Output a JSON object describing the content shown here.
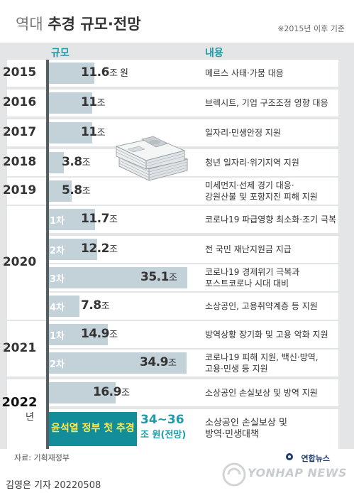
{
  "header": {
    "title_light": "역대",
    "title_bold": "추경 규모·전망",
    "note": "※2015년 이후 기준"
  },
  "columns": {
    "size": "규모",
    "content": "내용"
  },
  "chart_data": {
    "type": "bar",
    "orientation": "horizontal",
    "unit": "조 원",
    "rows": [
      {
        "year": "2015",
        "sub": "",
        "value": 11.6,
        "label_num": "11.6",
        "label_unit": "조 원",
        "desc": [
          "메르스 사태·가뭄 대응"
        ]
      },
      {
        "year": "2016",
        "sub": "",
        "value": 11,
        "label_num": "11",
        "label_unit": "조",
        "desc": [
          "브렉시트, 기업 구조조정 영향 대응"
        ]
      },
      {
        "year": "2017",
        "sub": "",
        "value": 11,
        "label_num": "11",
        "label_unit": "조",
        "desc": [
          "일자리·민생안정 지원"
        ]
      },
      {
        "year": "2018",
        "sub": "",
        "value": 3.8,
        "label_num": "3.8",
        "label_unit": "조",
        "desc": [
          "청년 일자리·위기지역 지원"
        ]
      },
      {
        "year": "2019",
        "sub": "",
        "value": 5.8,
        "label_num": "5.8",
        "label_unit": "조",
        "desc": [
          "미세먼지·선제 경기 대응·",
          "강원산불 및 포항지진 피해 지원"
        ]
      },
      {
        "year": "2020",
        "sub": "1차",
        "value": 11.7,
        "label_num": "11.7",
        "label_unit": "조",
        "desc": [
          "코로나19 파급영향 최소화·조기 극복"
        ]
      },
      {
        "year": "2020",
        "sub": "2차",
        "value": 12.2,
        "label_num": "12.2",
        "label_unit": "조",
        "desc": [
          "전 국민 재난지원금 지급"
        ]
      },
      {
        "year": "2020",
        "sub": "3차",
        "value": 35.1,
        "label_num": "35.1",
        "label_unit": "조",
        "desc": [
          "코로나19 경제위기 극복과",
          "포스트코로나 시대 대비"
        ]
      },
      {
        "year": "2020",
        "sub": "4차",
        "value": 7.8,
        "label_num": "7.8",
        "label_unit": "조",
        "desc": [
          "소상공인, 고용취약계층 등 지원"
        ]
      },
      {
        "year": "2021",
        "sub": "1차",
        "value": 14.9,
        "label_num": "14.9",
        "label_unit": "조",
        "desc": [
          "방역상황 장기화 및 고용 악화 지원"
        ]
      },
      {
        "year": "2021",
        "sub": "2차",
        "value": 34.9,
        "label_num": "34.9",
        "label_unit": "조",
        "desc": [
          "코로나19 피해 지원, 백신·방역,",
          "고용·민생 등 지원"
        ]
      },
      {
        "year": "2022",
        "sub": "",
        "value": 16.9,
        "label_num": "16.9",
        "label_unit": "조",
        "desc": [
          "소상공인 손실보상 및 방역 지원"
        ]
      }
    ],
    "highlight": {
      "year": "2022",
      "sub": "년",
      "label": "윤석열 정부 첫 추경",
      "value_range": [
        34,
        36
      ],
      "value_text": "34~36",
      "value_unit": "조 원(전망)",
      "desc": [
        "소상공인 손실보상 및",
        "방역·민생대책"
      ]
    }
  },
  "source": "자료: 기획재정부",
  "footer": {
    "author": "김영은 기자",
    "date": "20220508"
  },
  "logo": {
    "sub": "연합뉴스",
    "main": "YONHAP NEWS"
  },
  "colors": {
    "accent": "#1e9aa9",
    "bar": "#c3d1d8",
    "highlight_bar": "#138d9a",
    "highlight_text": "#ffe94a",
    "background": "#e3e5e7"
  }
}
